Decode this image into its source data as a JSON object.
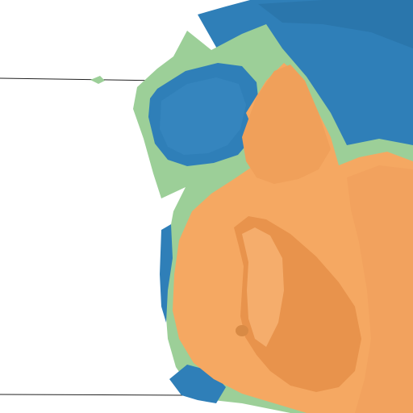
{
  "scene": {
    "background_color": "#ffffff",
    "surfaces": [
      {
        "name": "blue-surface",
        "color": "#2f7fb8",
        "shade": "#1f5f90"
      },
      {
        "name": "green-surface",
        "color": "#9ccf98",
        "shade": "#7fb27c"
      },
      {
        "name": "orange-surface",
        "color": "#f5a862",
        "shade": "#d88a45"
      }
    ],
    "guide_line_color": "#222222"
  }
}
